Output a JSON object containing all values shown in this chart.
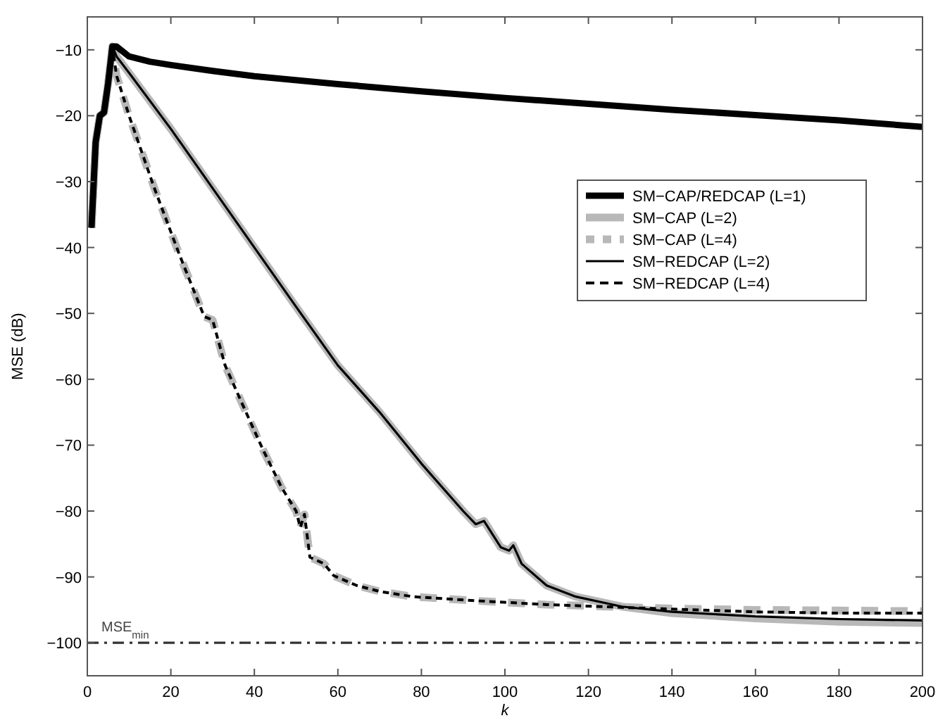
{
  "chart_data": {
    "type": "line",
    "xlabel": "k",
    "ylabel": "MSE (dB)",
    "xlim": [
      0,
      200
    ],
    "ylim": [
      -105,
      -5
    ],
    "xticks": [
      0,
      20,
      40,
      60,
      80,
      100,
      120,
      140,
      160,
      180,
      200
    ],
    "yticks": [
      -100,
      -90,
      -80,
      -70,
      -60,
      -50,
      -40,
      -30,
      -20,
      -10
    ],
    "grid": false,
    "legend": "right",
    "marker": "none",
    "series": [
      {
        "name": "SM−CAP/REDCAP (L=1)",
        "color": "#000000",
        "line_style": "solid",
        "x": [
          1,
          2,
          3,
          4,
          5,
          6,
          7,
          10,
          15,
          20,
          30,
          40,
          60,
          80,
          100,
          120,
          140,
          160,
          180,
          200
        ],
        "values": [
          -37,
          -24,
          -20,
          -19.5,
          -15,
          -9.5,
          -9.5,
          -11,
          -11.8,
          -12.3,
          -13.2,
          -14,
          -15.2,
          -16.3,
          -17.3,
          -18.2,
          -19.1,
          -19.9,
          -20.7,
          -21.7
        ]
      },
      {
        "name": "SM−CAP (L=2)",
        "color": "#b8b8b8",
        "line_style": "solid",
        "x": [
          1,
          2,
          3,
          4,
          5,
          6,
          7,
          10,
          20,
          30,
          40,
          50,
          60,
          70,
          80,
          90,
          93,
          95,
          99,
          101,
          102,
          104,
          110,
          117,
          128,
          140,
          160,
          180,
          200
        ],
        "values": [
          -37,
          -24,
          -20,
          -19.5,
          -15,
          -9.5,
          -11,
          -13.5,
          -22,
          -31,
          -40,
          -49,
          -57.9,
          -65,
          -72.8,
          -80,
          -82,
          -81.5,
          -85.5,
          -86,
          -85.2,
          -88,
          -91.3,
          -93,
          -94.5,
          -95.5,
          -96.3,
          -96.8,
          -97
        ]
      },
      {
        "name": "SM−CAP (L=4)",
        "color": "#b8b8b8",
        "line_style": "dashed",
        "x": [
          1,
          2,
          3,
          4,
          5,
          6,
          7,
          10,
          16,
          22,
          28,
          30,
          33,
          38,
          42,
          46.5,
          50,
          51,
          52,
          53.3,
          56.7,
          59,
          64.5,
          70,
          78,
          92.7,
          110,
          140,
          160,
          180,
          200
        ],
        "values": [
          -37,
          -24,
          -20,
          -19.5,
          -15,
          -9.5,
          -13.9,
          -20,
          -30.9,
          -41,
          -50.5,
          -51,
          -57.9,
          -65,
          -70.6,
          -76.4,
          -80,
          -82.5,
          -80.5,
          -87,
          -88,
          -89.8,
          -91.3,
          -92.2,
          -93,
          -93.6,
          -94.2,
          -94.8,
          -95,
          -95.1,
          -95.2
        ]
      },
      {
        "name": "SM−REDCAP (L=2)",
        "color": "#000000",
        "line_style": "solid",
        "x": [
          1,
          2,
          3,
          4,
          5,
          6,
          7,
          10,
          20,
          30,
          40,
          50,
          60,
          70,
          80,
          90,
          93,
          95,
          99,
          101,
          102,
          104,
          110,
          117,
          128,
          140,
          160,
          180,
          200
        ],
        "values": [
          -37,
          -24,
          -20,
          -19.5,
          -15,
          -9.5,
          -11,
          -13.5,
          -22,
          -31,
          -40,
          -49,
          -57.9,
          -65,
          -72.8,
          -80,
          -82,
          -81.5,
          -85.5,
          -86,
          -85.2,
          -88,
          -91.3,
          -93,
          -94.5,
          -95.3,
          -96,
          -96.4,
          -96.6
        ]
      },
      {
        "name": "SM−REDCAP (L=4)",
        "color": "#000000",
        "line_style": "dashed",
        "x": [
          1,
          2,
          3,
          4,
          5,
          6,
          7,
          10,
          16,
          22,
          28,
          30,
          33,
          38,
          42,
          46.5,
          50,
          51,
          52,
          53.3,
          56.7,
          59,
          64.5,
          70,
          78,
          92.7,
          110,
          136,
          160,
          180,
          200
        ],
        "values": [
          -37,
          -24,
          -20,
          -19.5,
          -15,
          -9.5,
          -13.9,
          -20,
          -30.9,
          -41,
          -50.5,
          -51,
          -57.9,
          -65,
          -70.6,
          -76.4,
          -80,
          -82.5,
          -80.5,
          -87,
          -88,
          -89.8,
          -91.3,
          -92.2,
          -93,
          -93.6,
          -94.2,
          -94.8,
          -95.3,
          -95.5,
          -95.5
        ]
      }
    ],
    "ref_lines": [
      {
        "axis": "y",
        "value": -100,
        "label": "MSE$_{min}$",
        "color": "#333333",
        "line_style": "dashdot"
      }
    ]
  }
}
